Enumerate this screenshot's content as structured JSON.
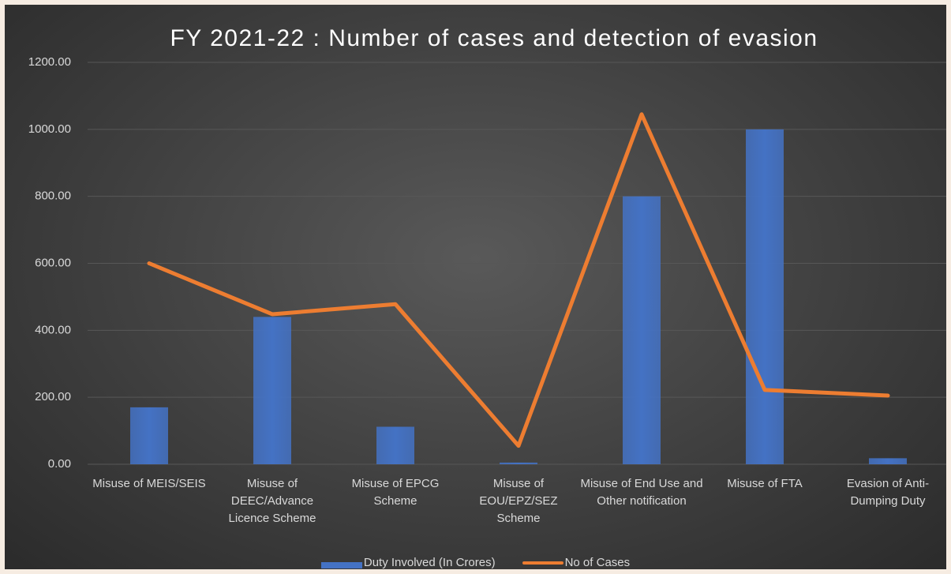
{
  "chart_data": {
    "type": "bar-line",
    "title": "FY 2021-22 : Number of cases and detection of evasion",
    "categories": [
      "Misuse of MEIS/SEIS",
      "Misuse of DEEC/Advance Licence Scheme",
      "Misuse of EPCG Scheme",
      "Misuse of EOU/EPZ/SEZ Scheme",
      "Misuse of End Use and Other notification",
      "Misuse of FTA",
      "Evasion of Anti-Dumping Duty"
    ],
    "series": [
      {
        "name": "Duty Involved (In Crores)",
        "type": "bar",
        "color": "#4472c4",
        "values": [
          170,
          440,
          112,
          5,
          800,
          1000,
          18
        ]
      },
      {
        "name": "No of Cases",
        "type": "line",
        "color": "#ed7d31",
        "values": [
          600,
          448,
          478,
          55,
          1045,
          222,
          205
        ]
      }
    ],
    "ylim": [
      0,
      1200
    ],
    "yticks": [
      {
        "value": 0,
        "label": "0.00"
      },
      {
        "value": 200,
        "label": "200.00"
      },
      {
        "value": 400,
        "label": "400.00"
      },
      {
        "value": 600,
        "label": "600.00"
      },
      {
        "value": 800,
        "label": "800.00"
      },
      {
        "value": 1000,
        "label": "1000.00"
      },
      {
        "value": 1200,
        "label": "1200.00"
      }
    ],
    "grid": true
  }
}
